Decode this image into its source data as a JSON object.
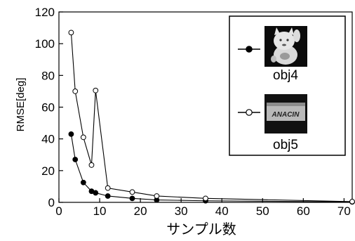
{
  "chart_data": {
    "type": "line",
    "title": "",
    "xlabel": "サンプル数",
    "ylabel": "RMSE[deg]",
    "xlim": [
      0,
      72
    ],
    "ylim": [
      0,
      120
    ],
    "xticks": [
      0,
      10,
      20,
      30,
      40,
      50,
      60,
      70
    ],
    "yticks": [
      0,
      20,
      40,
      60,
      80,
      100,
      120
    ],
    "grid": false,
    "legend_position": "top-right",
    "series": [
      {
        "name": "obj4",
        "marker": "filled-circle",
        "color": "#000000",
        "x": [
          3,
          4,
          6,
          8,
          9,
          12,
          18,
          24,
          36,
          72
        ],
        "y": [
          43,
          27,
          12.5,
          7,
          6,
          4,
          2.5,
          1.5,
          1,
          0.3
        ]
      },
      {
        "name": "obj5",
        "marker": "open-circle",
        "color": "#000000",
        "x": [
          3,
          4,
          6,
          8,
          9,
          12,
          18,
          24,
          36,
          72
        ],
        "y": [
          107,
          70,
          41,
          23.5,
          70.5,
          9,
          6.5,
          4,
          2.5,
          0.5
        ]
      }
    ],
    "legend_thumbnails": {
      "obj4": "maneki-neko figurine photo",
      "obj5": "ANACIN box photo"
    },
    "thumbnail_text": {
      "obj5": "ANACIN"
    }
  }
}
